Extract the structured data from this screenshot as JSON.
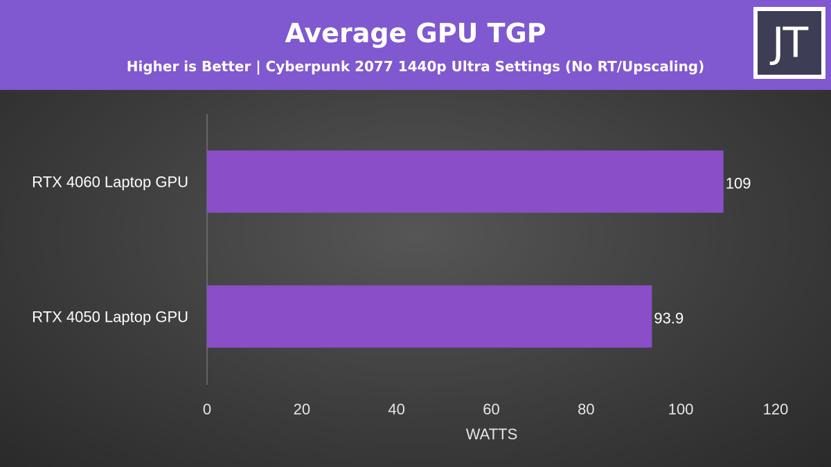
{
  "header": {
    "title": "Average GPU TGP",
    "subtitle": "Higher is Better | Cyberpunk 2077 1440p Ultra Settings (No RT/Upscaling)",
    "logo_text": "JT"
  },
  "colors": {
    "header_bg": "#8058cf",
    "bar": "#8a4fc8",
    "background": "#3a3a3a"
  },
  "chart_data": {
    "type": "bar",
    "orientation": "horizontal",
    "categories": [
      "RTX 4060 Laptop GPU",
      "RTX 4050 Laptop GPU"
    ],
    "values": [
      109,
      93.9
    ],
    "value_labels": [
      "109",
      "93.9"
    ],
    "title": "Average GPU TGP",
    "subtitle": "Higher is Better | Cyberpunk 2077 1440p Ultra Settings (No RT/Upscaling)",
    "xlabel": "WATTS",
    "ylabel": "",
    "xlim": [
      0,
      120
    ],
    "ticks": [
      0,
      20,
      40,
      60,
      80,
      100,
      120
    ],
    "grid": false,
    "legend": "none"
  }
}
